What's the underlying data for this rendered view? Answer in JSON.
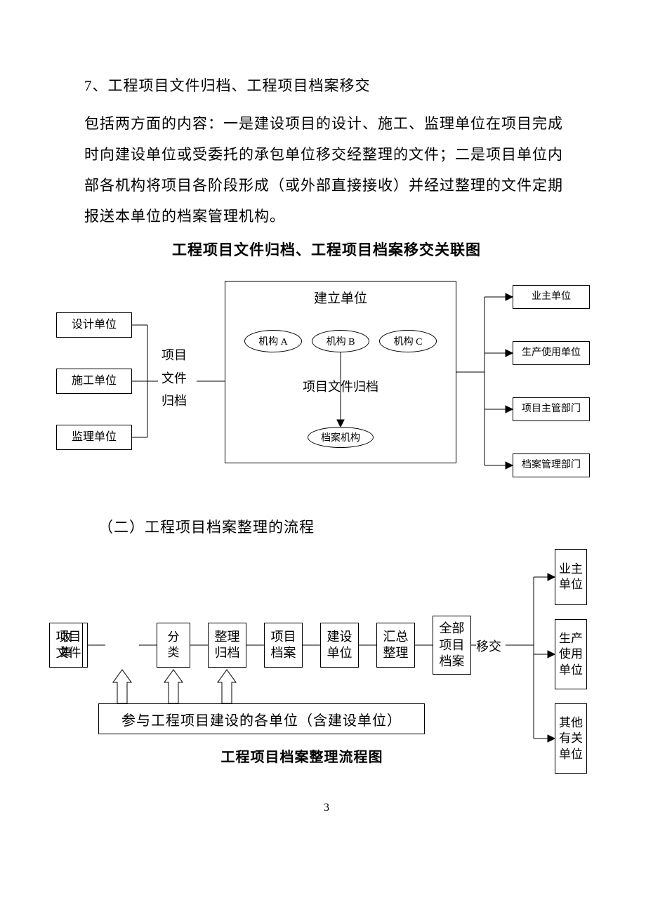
{
  "text": {
    "heading": "7、工程项目文件归档、工程项目档案移交",
    "body": "包括两方面的内容：一是建设项目的设计、施工、监理单位在项目完成时向建设单位或受委托的承包单位移交经整理的文件；二是项目单位内部各机构将项目各阶段形成（或外部直接接收）并经过整理的文件定期报送本单位的档案管理机构。",
    "diagram1_title": "工程项目文件归档、工程项目档案移交关联图",
    "subheading": "（二）工程项目档案整理的流程",
    "diagram2_caption": "工程项目档案整理流程图",
    "page_number": "3"
  },
  "diagram1": {
    "left_boxes": [
      "设计单位",
      "施工单位",
      "监理单位"
    ],
    "left_label": "项目\n文件\n归档",
    "center_title": "建立单位",
    "ovals": [
      "机构 A",
      "机构 B",
      "机构 C"
    ],
    "center_label": "项目文件归档",
    "archive_oval": "档案机构",
    "right_boxes": [
      "业主单位",
      "生产使用单位",
      "项目主管部门",
      "档案管理部门"
    ],
    "stroke": "#000000",
    "font_main": 18,
    "font_small": 14
  },
  "diagram2": {
    "flow": [
      "项目\n文件",
      "收\n集",
      "分\n类",
      "整理\n归档",
      "项目\n档案",
      "建设\n单位",
      "汇总\n整理",
      "全部\n项目\n档案"
    ],
    "transfer_label": "移交",
    "wide_box": "参与工程项目建设的各单位（含建设单位）",
    "right_boxes": [
      "业主\n单位",
      "生产\n使用\n单位",
      "其他\n有关\n单位"
    ],
    "stroke": "#000000"
  }
}
